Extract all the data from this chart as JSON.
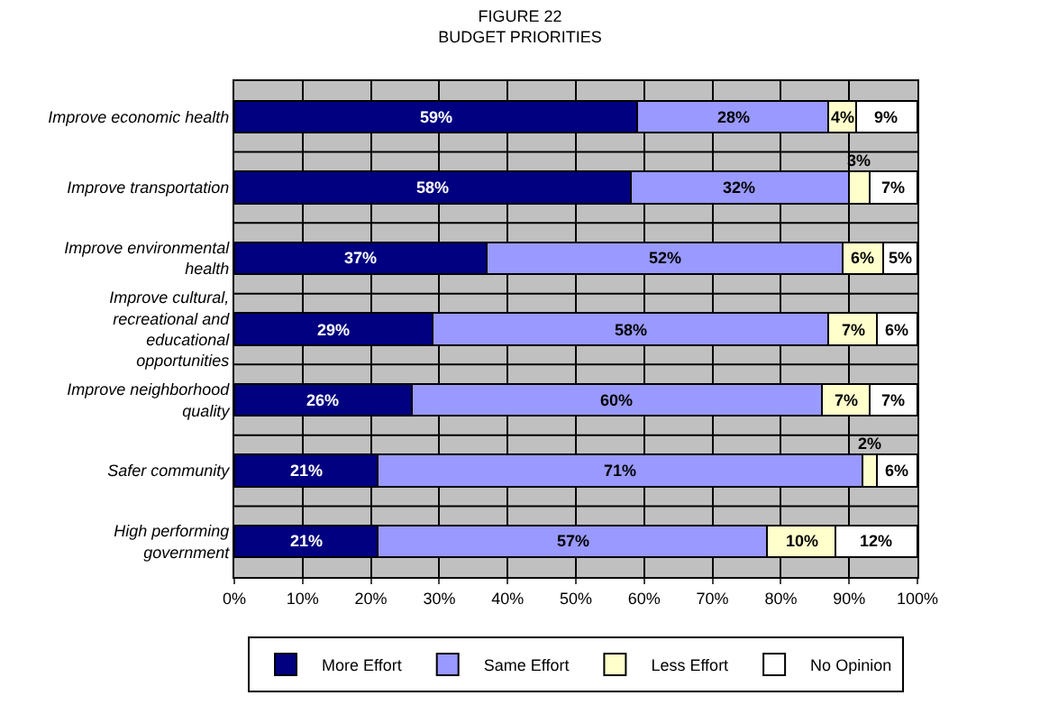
{
  "chart_data": {
    "type": "bar",
    "title": "FIGURE 22",
    "subtitle": "BUDGET PRIORITIES",
    "orientation": "horizontal",
    "stacked": true,
    "categories": [
      "Improve economic health",
      "Improve transportation",
      "Improve environmental health",
      "Improve cultural, recreational and educational opportunities",
      "Improve neighborhood quality",
      "Safer community",
      "High performing government"
    ],
    "series": [
      {
        "name": "More Effort",
        "color": "#000080",
        "values": [
          59,
          58,
          37,
          29,
          26,
          21,
          21
        ],
        "value_labels": [
          "59%",
          "58%",
          "37%",
          "29%",
          "26%",
          "21%",
          "21%"
        ]
      },
      {
        "name": "Same Effort",
        "color": "#9999ff",
        "values": [
          28,
          32,
          52,
          58,
          60,
          71,
          57
        ],
        "value_labels": [
          "28%",
          "32%",
          "52%",
          "58%",
          "60%",
          "71%",
          "57%"
        ]
      },
      {
        "name": "Less Effort",
        "color": "#ffffcc",
        "values": [
          4,
          3,
          6,
          7,
          7,
          2,
          10
        ],
        "value_labels": [
          "4%",
          "3%",
          "6%",
          "7%",
          "7%",
          "2%",
          "10%"
        ]
      },
      {
        "name": "No Opinion",
        "color": "#ffffff",
        "values": [
          9,
          7,
          5,
          6,
          7,
          6,
          12
        ],
        "value_labels": [
          "9%",
          "7%",
          "5%",
          "6%",
          "7%",
          "6%",
          "12%"
        ]
      }
    ],
    "xlim": [
      0,
      100
    ],
    "xticks": [
      {
        "value": 0,
        "label": "0%"
      },
      {
        "value": 10,
        "label": "10%"
      },
      {
        "value": 20,
        "label": "20%"
      },
      {
        "value": 30,
        "label": "30%"
      },
      {
        "value": 40,
        "label": "40%"
      },
      {
        "value": 50,
        "label": "50%"
      },
      {
        "value": 60,
        "label": "60%"
      },
      {
        "value": 70,
        "label": "70%"
      },
      {
        "value": 80,
        "label": "80%"
      },
      {
        "value": 90,
        "label": "90%"
      },
      {
        "value": 100,
        "label": "100%"
      }
    ],
    "grid": true,
    "legend": "bottom"
  }
}
